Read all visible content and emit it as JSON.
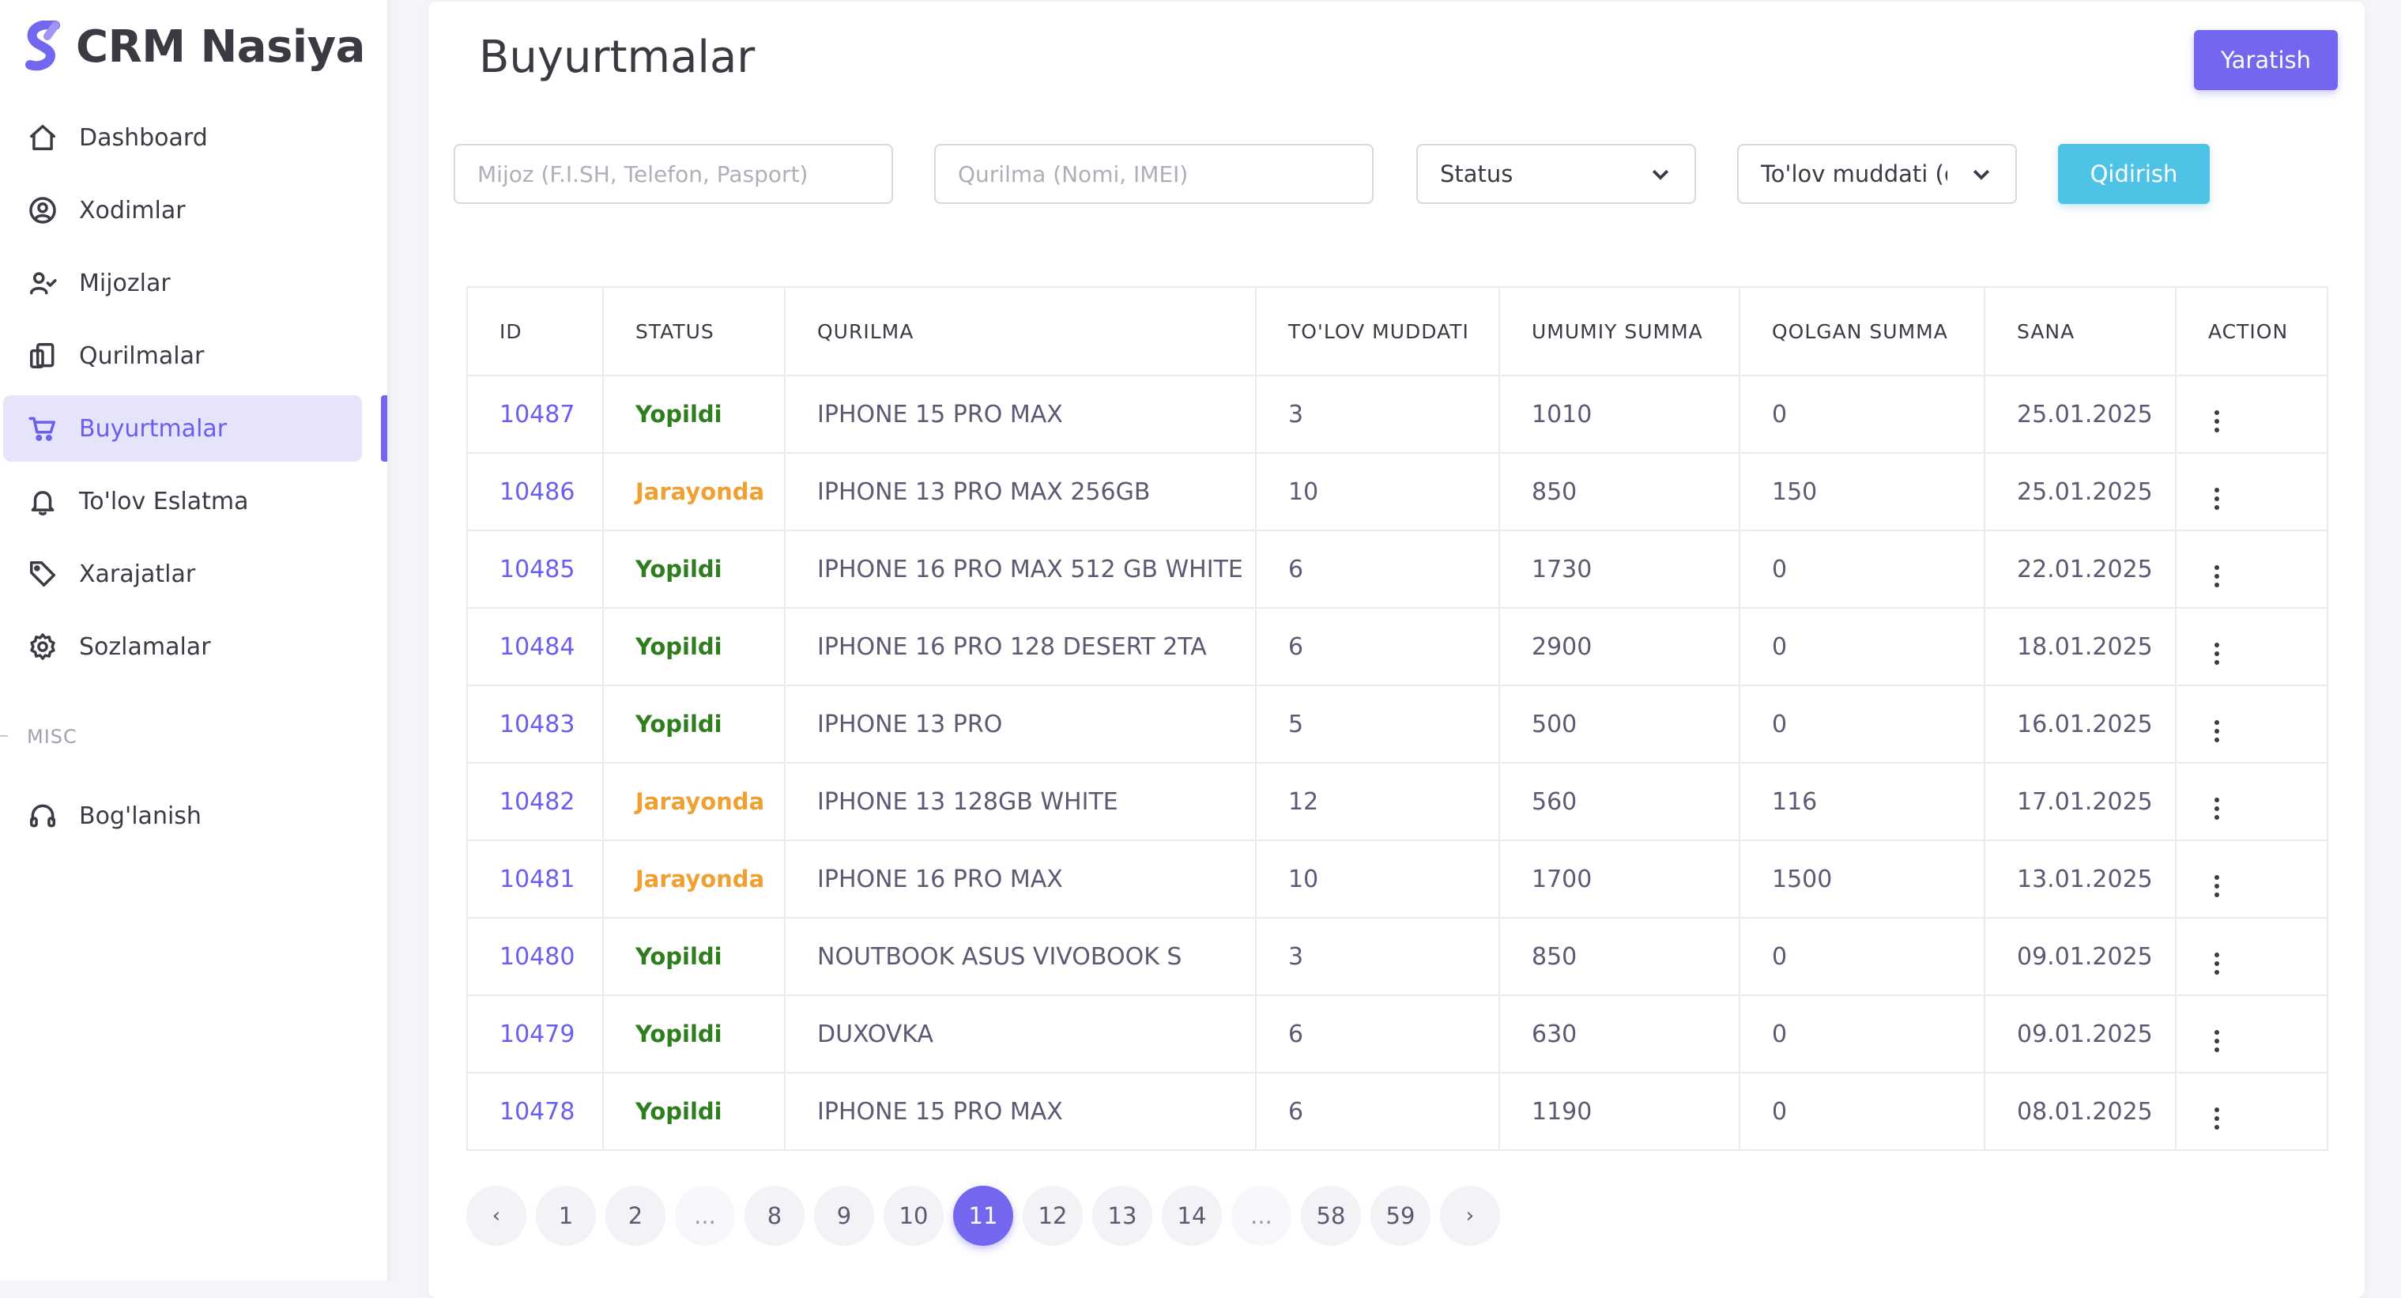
{
  "brand": {
    "name": "CRM Nasiya"
  },
  "sidebar": {
    "items": [
      {
        "label": "Dashboard",
        "icon": "home-icon"
      },
      {
        "label": "Xodimlar",
        "icon": "user-circle-icon"
      },
      {
        "label": "Mijozlar",
        "icon": "user-check-icon"
      },
      {
        "label": "Qurilmalar",
        "icon": "devices-icon"
      },
      {
        "label": "Buyurtmalar",
        "icon": "cart-icon",
        "active": true
      },
      {
        "label": "To'lov Eslatma",
        "icon": "bell-icon"
      },
      {
        "label": "Xarajatlar",
        "icon": "tag-icon"
      },
      {
        "label": "Sozlamalar",
        "icon": "gear-icon"
      }
    ],
    "misc_label": "MISC",
    "misc_items": [
      {
        "label": "Bog'lanish",
        "icon": "headphones-icon"
      }
    ]
  },
  "page": {
    "title": "Buyurtmalar",
    "create_label": "Yaratish"
  },
  "filters": {
    "client_placeholder": "Mijoz (F.I.SH, Telefon, Pasport)",
    "device_placeholder": "Qurilma (Nomi, IMEI)",
    "status_value": "Status",
    "term_value": "To'lov muddati (oy)",
    "search_label": "Qidirish"
  },
  "table": {
    "columns": [
      "ID",
      "STATUS",
      "QURILMA",
      "TO'LOV MUDDATI",
      "UMUMIY SUMMA",
      "QOLGAN SUMMA",
      "SANA",
      "ACTION"
    ],
    "rows": [
      {
        "id": "10487",
        "status": "Yopildi",
        "device": "IPHONE 15 PRO MAX",
        "term": "3",
        "total": "1010",
        "left": "0",
        "date": "25.01.2025"
      },
      {
        "id": "10486",
        "status": "Jarayonda",
        "device": "IPHONE 13 PRO MAX 256GB",
        "term": "10",
        "total": "850",
        "left": "150",
        "date": "25.01.2025"
      },
      {
        "id": "10485",
        "status": "Yopildi",
        "device": "IPHONE 16 PRO MAX 512 GB WHITE",
        "term": "6",
        "total": "1730",
        "left": "0",
        "date": "22.01.2025"
      },
      {
        "id": "10484",
        "status": "Yopildi",
        "device": "IPHONE 16 PRO 128 DESERT 2TA",
        "term": "6",
        "total": "2900",
        "left": "0",
        "date": "18.01.2025"
      },
      {
        "id": "10483",
        "status": "Yopildi",
        "device": "IPHONE 13 PRO",
        "term": "5",
        "total": "500",
        "left": "0",
        "date": "16.01.2025"
      },
      {
        "id": "10482",
        "status": "Jarayonda",
        "device": "IPHONE 13 128GB WHITE",
        "term": "12",
        "total": "560",
        "left": "116",
        "date": "17.01.2025"
      },
      {
        "id": "10481",
        "status": "Jarayonda",
        "device": "IPHONE 16 PRO MAX",
        "term": "10",
        "total": "1700",
        "left": "1500",
        "date": "13.01.2025"
      },
      {
        "id": "10480",
        "status": "Yopildi",
        "device": "NOUTBOOK ASUS VIVOBOOK S",
        "term": "3",
        "total": "850",
        "left": "0",
        "date": "09.01.2025"
      },
      {
        "id": "10479",
        "status": "Yopildi",
        "device": "DUXOVKA",
        "term": "6",
        "total": "630",
        "left": "0",
        "date": "09.01.2025"
      },
      {
        "id": "10478",
        "status": "Yopildi",
        "device": "IPHONE 15 PRO MAX",
        "term": "6",
        "total": "1190",
        "left": "0",
        "date": "08.01.2025"
      }
    ]
  },
  "pagination": {
    "prev": "‹",
    "next": "›",
    "pages": [
      "1",
      "2",
      "...",
      "8",
      "9",
      "10",
      "11",
      "12",
      "13",
      "14",
      "...",
      "58",
      "59"
    ],
    "current": "11"
  },
  "colors": {
    "accent": "#7367f0",
    "info": "#4fc3e6",
    "status_closed": "#2e7d1f",
    "status_in_progress": "#f0a030"
  }
}
